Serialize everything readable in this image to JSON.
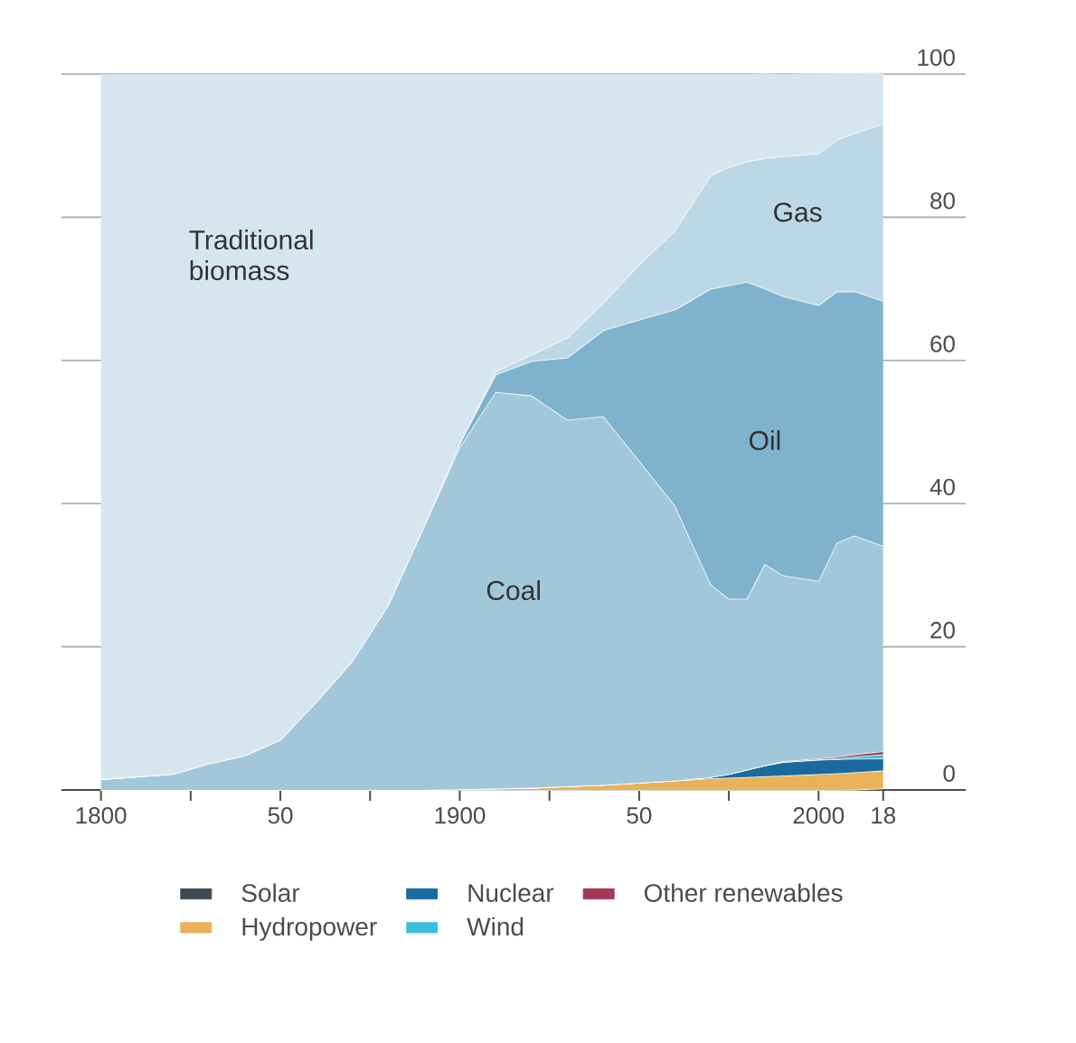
{
  "chart_data": {
    "type": "area",
    "stacked": true,
    "x": [
      1800,
      1820,
      1830,
      1840,
      1850,
      1860,
      1870,
      1880,
      1890,
      1900,
      1910,
      1920,
      1930,
      1940,
      1950,
      1960,
      1970,
      1975,
      1980,
      1985,
      1990,
      2000,
      2005,
      2010,
      2018
    ],
    "series": [
      {
        "name": "Solar",
        "color": "#3d4a54",
        "values": [
          0,
          0,
          0,
          0,
          0,
          0,
          0,
          0,
          0,
          0,
          0,
          0,
          0,
          0,
          0,
          0,
          0,
          0,
          0,
          0,
          0,
          0,
          0,
          0.05,
          0.2
        ]
      },
      {
        "name": "Hydropower",
        "color": "#e8b25a",
        "values": [
          0,
          0,
          0,
          0,
          0,
          0,
          0,
          0,
          0,
          0.1,
          0.2,
          0.3,
          0.5,
          0.7,
          1.0,
          1.3,
          1.6,
          1.7,
          1.8,
          1.9,
          2.0,
          2.2,
          2.3,
          2.4,
          2.5
        ]
      },
      {
        "name": "Nuclear",
        "color": "#1a6aa0",
        "values": [
          0,
          0,
          0,
          0,
          0,
          0,
          0,
          0,
          0,
          0,
          0,
          0,
          0,
          0,
          0,
          0,
          0.2,
          0.5,
          1.0,
          1.5,
          1.9,
          2.0,
          2.0,
          1.9,
          1.7
        ]
      },
      {
        "name": "Wind",
        "color": "#3bbfd8",
        "values": [
          0,
          0,
          0,
          0,
          0,
          0,
          0,
          0,
          0,
          0,
          0,
          0,
          0,
          0,
          0,
          0,
          0,
          0,
          0,
          0,
          0,
          0.05,
          0.1,
          0.3,
          0.6
        ]
      },
      {
        "name": "Other renewables",
        "color": "#a23a55",
        "values": [
          0,
          0,
          0,
          0,
          0,
          0,
          0,
          0,
          0,
          0,
          0,
          0,
          0,
          0,
          0,
          0,
          0,
          0,
          0,
          0.05,
          0.1,
          0.15,
          0.2,
          0.3,
          0.4
        ]
      },
      {
        "name": "Coal",
        "color": "#a3c7da",
        "values": [
          1.5,
          2.2,
          3.7,
          4.8,
          7.0,
          12.3,
          18,
          25.8,
          36.8,
          47.8,
          55.4,
          54.8,
          51.2,
          51.5,
          45,
          38.4,
          26.9,
          24.5,
          23.9,
          28.1,
          26,
          24.8,
          29.9,
          30.6,
          28.7
        ]
      },
      {
        "name": "Oil",
        "color": "#7fb2cd",
        "values": [
          0,
          0,
          0,
          0,
          0,
          0,
          0,
          0,
          0,
          0.5,
          2.4,
          4.8,
          8.7,
          12,
          19.7,
          27.4,
          41.3,
          43.8,
          44.3,
          38.5,
          39,
          38.5,
          35.1,
          34.1,
          34.2
        ]
      },
      {
        "name": "Gas",
        "color": "#bcd8e6",
        "values": [
          0,
          0,
          0,
          0,
          0,
          0,
          0,
          0,
          0,
          0,
          0.5,
          0.9,
          2.8,
          3.9,
          7.7,
          11.1,
          15.9,
          16.5,
          16.8,
          18.2,
          19.5,
          21.2,
          21.2,
          22.1,
          24.8
        ]
      },
      {
        "name": "Traditional biomass",
        "color": "#d6e6ef",
        "values": [
          98.5,
          97.8,
          96.3,
          95.2,
          93,
          87.7,
          82,
          74.2,
          63.2,
          51.6,
          41.5,
          39.2,
          36.8,
          31.9,
          26.6,
          21.8,
          14.1,
          13,
          12.2,
          11.8,
          11.5,
          11.2,
          9.3,
          8.4,
          7.1
        ]
      }
    ],
    "xlim": [
      1789,
      2041
    ],
    "xticks": [
      {
        "value": 1800,
        "label": "1800"
      },
      {
        "value": 1825,
        "label": null
      },
      {
        "value": 1850,
        "label": "50"
      },
      {
        "value": 1875,
        "label": null
      },
      {
        "value": 1900,
        "label": "1900"
      },
      {
        "value": 1925,
        "label": null
      },
      {
        "value": 1950,
        "label": "50"
      },
      {
        "value": 1975,
        "label": null
      },
      {
        "value": 2000,
        "label": "2000"
      },
      {
        "value": 2018,
        "label": "18"
      }
    ],
    "ylim": [
      0,
      100
    ],
    "yticks": [
      0,
      20,
      40,
      60,
      80,
      100
    ],
    "grid": "y",
    "legend": "bottom"
  }
}
